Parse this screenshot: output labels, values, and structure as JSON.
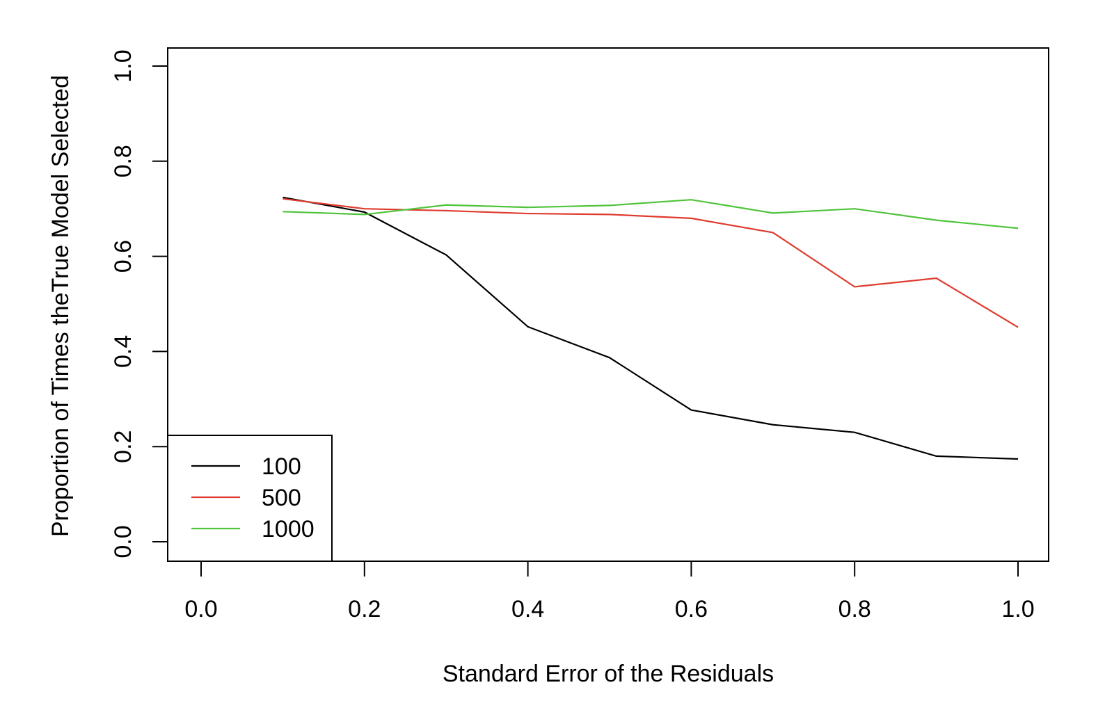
{
  "chart_data": {
    "type": "line",
    "title": "",
    "xlabel": "Standard Error of the Residuals",
    "ylabel": "Proportion of Times theTrue Model Selected",
    "xlim": [
      0.0,
      1.0
    ],
    "ylim": [
      0.0,
      1.0
    ],
    "x_ticks": [
      0.0,
      0.2,
      0.4,
      0.6,
      0.8,
      1.0
    ],
    "x_tick_labels": [
      "0.0",
      "0.2",
      "0.4",
      "0.6",
      "0.8",
      "1.0"
    ],
    "y_ticks": [
      0.0,
      0.2,
      0.4,
      0.6,
      0.8,
      1.0
    ],
    "y_tick_labels": [
      "0.0",
      "0.2",
      "0.4",
      "0.6",
      "0.8",
      "1.0"
    ],
    "grid": false,
    "legend_position": "bottom-left",
    "x": [
      0.1,
      0.2,
      0.3,
      0.4,
      0.5,
      0.6,
      0.7,
      0.8,
      0.9,
      1.0
    ],
    "series": [
      {
        "name": "100",
        "color": "#000000",
        "values": [
          0.724,
          0.693,
          0.603,
          0.452,
          0.387,
          0.277,
          0.246,
          0.23,
          0.18,
          0.174
        ]
      },
      {
        "name": "500",
        "color": "#df3b2f",
        "values": [
          0.721,
          0.7,
          0.696,
          0.69,
          0.688,
          0.68,
          0.65,
          0.536,
          0.554,
          0.451
        ]
      },
      {
        "name": "1000",
        "color": "#4fc43b",
        "values": [
          0.694,
          0.688,
          0.708,
          0.703,
          0.707,
          0.719,
          0.691,
          0.7,
          0.676,
          0.659
        ]
      }
    ]
  }
}
